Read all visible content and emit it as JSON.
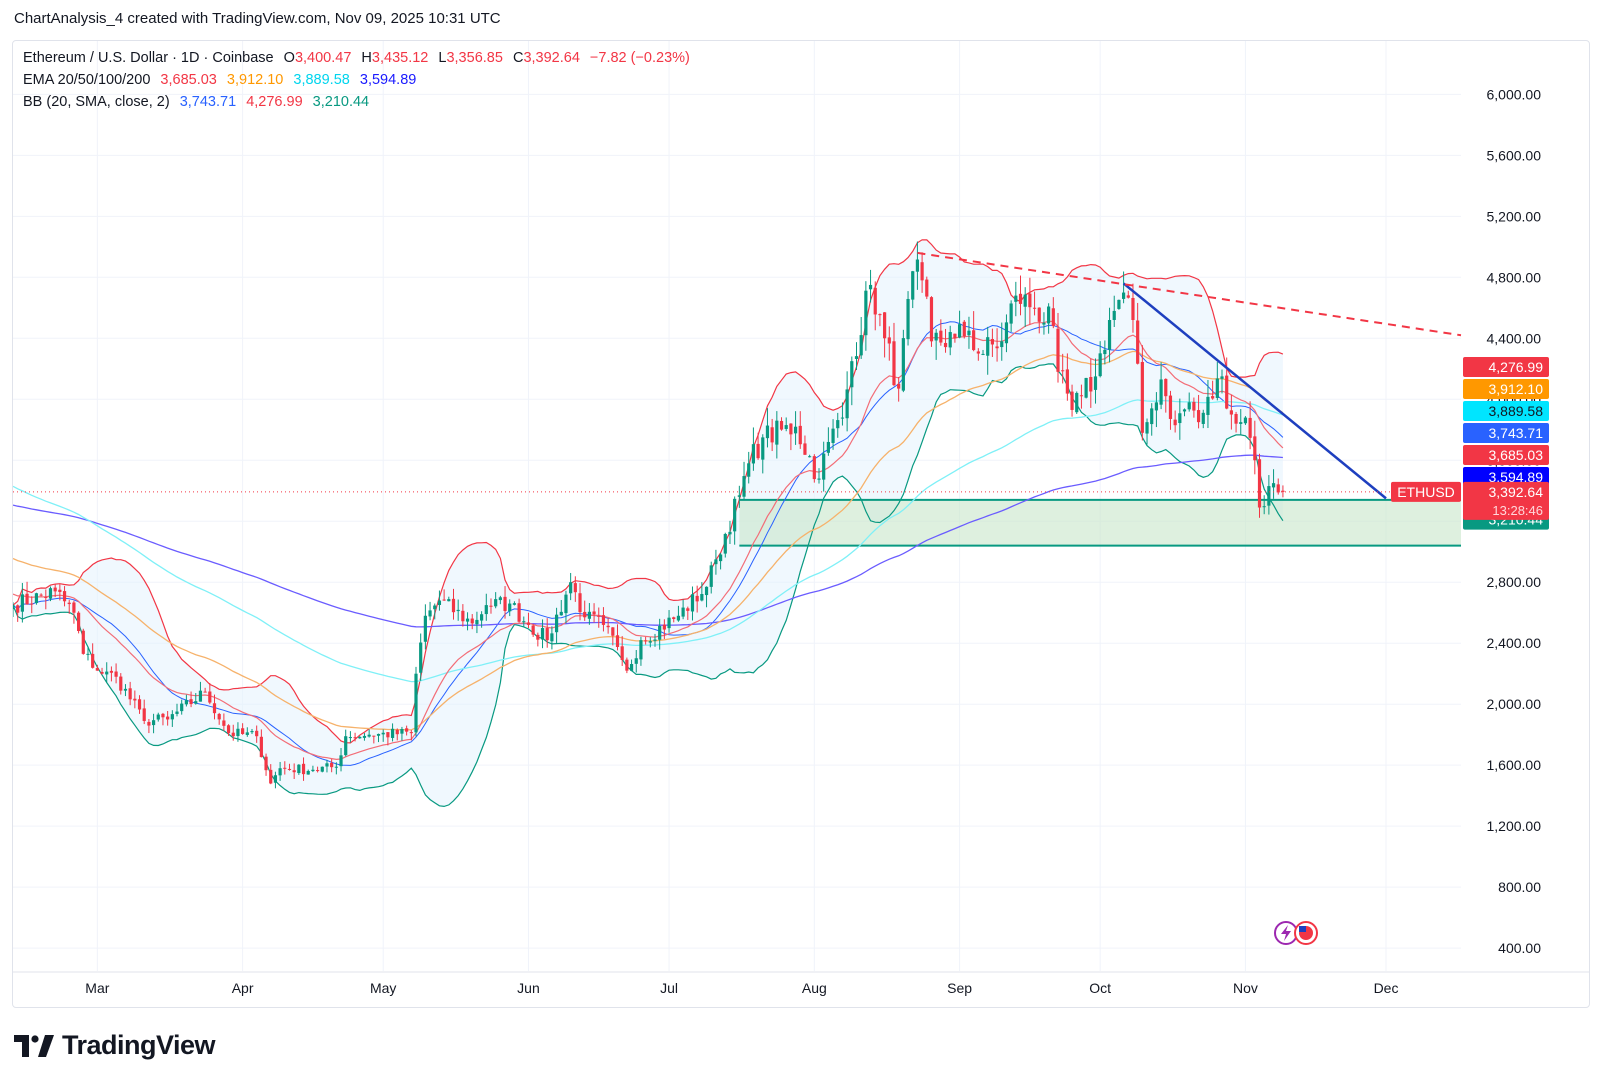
{
  "header": {
    "created_line": "ChartAnalysis_4 created with TradingView.com, Nov 09, 2025 10:31 UTC"
  },
  "legend": {
    "symbol_line": "Ethereum / U.S. Dollar · 1D · Coinbase",
    "o_label": "O",
    "o_value": "3,400.47",
    "h_label": "H",
    "h_value": "3,435.12",
    "l_label": "L",
    "l_value": "3,356.85",
    "c_label": "C",
    "c_value": "3,392.64",
    "change": "−7.82 (−0.23%)",
    "ema_label": "EMA 20/50/100/200",
    "ema_values": [
      "3,685.03",
      "3,912.10",
      "3,889.58",
      "3,594.89"
    ],
    "bb_label": "BB (20, SMA, close, 2)",
    "bb_values": [
      "3,743.71",
      "4,276.99",
      "3,210.44"
    ]
  },
  "footer": {
    "brand": "TradingView"
  },
  "colors": {
    "up": "#089981",
    "down": "#f23645",
    "ema20": "#f23645",
    "ema50": "#ff9800",
    "ema100": "#00e5ff",
    "ema200": "#2962ff",
    "bb_basis": "#2962ff",
    "bb_upper": "#f23645",
    "bb_lower": "#089981",
    "bb_fill": "#e3f2fd",
    "zone_fill": "#c8e6c9",
    "zone_line": "#089981",
    "trend_solid": "#1e3fbf",
    "trend_dashed": "#f23645",
    "price_line": "#f23645"
  },
  "chart_data": {
    "type": "candlestick",
    "title": "Ethereum / U.S. Dollar · 1D · Coinbase",
    "x_ticks": [
      "Mar",
      "Apr",
      "May",
      "Jun",
      "Jul",
      "Aug",
      "Sep",
      "Oct",
      "Nov",
      "Dec"
    ],
    "x_tick_dates": [
      "2025-03-01",
      "2025-04-01",
      "2025-05-01",
      "2025-06-01",
      "2025-07-01",
      "2025-08-01",
      "2025-09-01",
      "2025-10-01",
      "2025-11-01",
      "2025-12-01"
    ],
    "x_range": [
      "2025-02-11",
      "2025-12-17"
    ],
    "y_ticks": [
      "400.00",
      "800.00",
      "1,200.00",
      "1,600.00",
      "2,000.00",
      "2,400.00",
      "2,800.00",
      "3,200.00",
      "3,600.00",
      "4,000.00",
      "4,400.00",
      "4,800.00",
      "5,200.00",
      "5,600.00",
      "6,000.00"
    ],
    "y_tick_values": [
      400,
      800,
      1200,
      1600,
      2000,
      2400,
      2800,
      3200,
      3600,
      4000,
      4400,
      4800,
      5200,
      5600,
      6000
    ],
    "ylim": [
      250,
      6350
    ],
    "y_axis_side": "right",
    "grid": true,
    "start_date": "2025-02-11",
    "close_anchors": [
      [
        "2025-02-11",
        2650
      ],
      [
        "2025-02-20",
        2740
      ],
      [
        "2025-02-24",
        2600
      ],
      [
        "2025-02-26",
        2330
      ],
      [
        "2025-03-02",
        2200
      ],
      [
        "2025-03-05",
        2180
      ],
      [
        "2025-03-11",
        1890
      ],
      [
        "2025-03-16",
        1900
      ],
      [
        "2025-03-24",
        2080
      ],
      [
        "2025-03-29",
        1810
      ],
      [
        "2025-04-04",
        1790
      ],
      [
        "2025-04-07",
        1480
      ],
      [
        "2025-04-09",
        1580
      ],
      [
        "2025-04-16",
        1570
      ],
      [
        "2025-04-21",
        1590
      ],
      [
        "2025-04-23",
        1790
      ],
      [
        "2025-04-28",
        1800
      ],
      [
        "2025-05-07",
        1810
      ],
      [
        "2025-05-08",
        2200
      ],
      [
        "2025-05-10",
        2580
      ],
      [
        "2025-05-13",
        2680
      ],
      [
        "2025-05-20",
        2530
      ],
      [
        "2025-05-23",
        2650
      ],
      [
        "2025-05-28",
        2660
      ],
      [
        "2025-06-01",
        2520
      ],
      [
        "2025-06-05",
        2420
      ],
      [
        "2025-06-10",
        2800
      ],
      [
        "2025-06-13",
        2570
      ],
      [
        "2025-06-17",
        2520
      ],
      [
        "2025-06-21",
        2290
      ],
      [
        "2025-06-22",
        2220
      ],
      [
        "2025-06-25",
        2420
      ],
      [
        "2025-07-03",
        2580
      ],
      [
        "2025-07-09",
        2770
      ],
      [
        "2025-07-11",
        2950
      ],
      [
        "2025-07-16",
        3370
      ],
      [
        "2025-07-18",
        3580
      ],
      [
        "2025-07-21",
        3750
      ],
      [
        "2025-07-28",
        3820
      ],
      [
        "2025-08-02",
        3480
      ],
      [
        "2025-08-04",
        3720
      ],
      [
        "2025-08-07",
        3880
      ],
      [
        "2025-08-09",
        4250
      ],
      [
        "2025-08-13",
        4750
      ],
      [
        "2025-08-16",
        4400
      ],
      [
        "2025-08-19",
        4070
      ],
      [
        "2025-08-22",
        4840
      ],
      [
        "2025-08-24",
        4780
      ],
      [
        "2025-08-26",
        4380
      ],
      [
        "2025-08-31",
        4400
      ],
      [
        "2025-09-03",
        4450
      ],
      [
        "2025-09-05",
        4300
      ],
      [
        "2025-09-10",
        4380
      ],
      [
        "2025-09-13",
        4680
      ],
      [
        "2025-09-17",
        4600
      ],
      [
        "2025-09-21",
        4480
      ],
      [
        "2025-09-22",
        4180
      ],
      [
        "2025-09-25",
        3930
      ],
      [
        "2025-09-27",
        4020
      ],
      [
        "2025-09-30",
        4150
      ],
      [
        "2025-10-03",
        4520
      ],
      [
        "2025-10-06",
        4700
      ],
      [
        "2025-10-08",
        4520
      ],
      [
        "2025-10-10",
        3780
      ],
      [
        "2025-10-11",
        3850
      ],
      [
        "2025-10-14",
        4130
      ],
      [
        "2025-10-17",
        3830
      ],
      [
        "2025-10-20",
        3980
      ],
      [
        "2025-10-22",
        3850
      ],
      [
        "2025-10-27",
        4150
      ],
      [
        "2025-10-29",
        3900
      ],
      [
        "2025-10-31",
        3850
      ],
      [
        "2025-11-01",
        3880
      ],
      [
        "2025-11-03",
        3600
      ],
      [
        "2025-11-04",
        3290
      ],
      [
        "2025-11-07",
        3450
      ],
      [
        "2025-11-09",
        3392.64
      ]
    ],
    "ohlc_last": {
      "open": 3400.47,
      "high": 3435.12,
      "low": 3356.85,
      "close": 3392.64
    },
    "ema": {
      "ema20_last": 3685.03,
      "ema50_last": 3912.1,
      "ema100_last": 3889.58,
      "ema200_last": 3594.89
    },
    "bollinger": {
      "period": 20,
      "mult": 2,
      "basis_last": 3743.71,
      "upper_last": 4276.99,
      "lower_last": 3210.44
    },
    "support_zone": {
      "top": 3340,
      "bottom": 3040,
      "start_date": "2025-07-16"
    },
    "trendline_solid": [
      [
        "2025-10-06",
        4760
      ],
      [
        "2025-12-01",
        3350
      ]
    ],
    "trendline_dashed": [
      [
        "2025-08-23",
        4960
      ],
      [
        "2025-12-17",
        4420
      ]
    ],
    "last_price_label": {
      "symbol": "ETHUSD",
      "price": "3,392.64",
      "countdown": "13:28:46"
    },
    "price_badges": [
      {
        "text": "4,276.99",
        "value": 4276.99,
        "color": "#f23645"
      },
      {
        "text": "3,912.10",
        "value": 3912.1,
        "color": "#ff9800"
      },
      {
        "text": "3,889.58",
        "value": 3889.58,
        "color": "#00e5ff"
      },
      {
        "text": "3,743.71",
        "value": 3743.71,
        "color": "#2962ff"
      },
      {
        "text": "3,685.03",
        "value": 3685.03,
        "color": "#f23645"
      },
      {
        "text": "3,594.89",
        "value": 3594.89,
        "color": "#0000ff"
      },
      {
        "text": "3,210.44",
        "value": 3210.44,
        "color": "#089981"
      }
    ]
  }
}
